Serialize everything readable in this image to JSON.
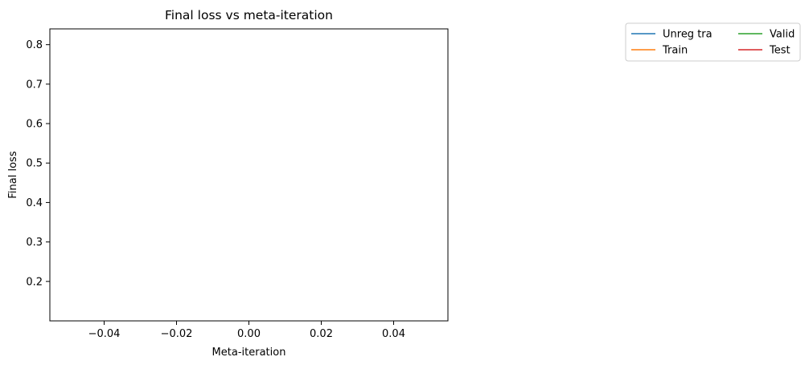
{
  "chart_data": {
    "type": "line",
    "title": "Final loss vs meta-iteration",
    "xlabel": "Meta-iteration",
    "ylabel": "Final loss",
    "xlim": [
      -0.055,
      0.055
    ],
    "ylim": [
      0.1,
      0.84
    ],
    "xticks": [
      -0.04,
      -0.02,
      0.0,
      0.02,
      0.04
    ],
    "xtick_labels": [
      "−0.04",
      "−0.02",
      "0.00",
      "0.02",
      "0.04"
    ],
    "yticks": [
      0.2,
      0.3,
      0.4,
      0.5,
      0.6,
      0.7,
      0.8
    ],
    "ytick_labels": [
      "0.2",
      "0.3",
      "0.4",
      "0.5",
      "0.6",
      "0.7",
      "0.8"
    ],
    "grid": false,
    "legend_placement": "outside-top-right",
    "legend_columns": 2,
    "series": [
      {
        "name": "Unreg tra",
        "color": "#1f77b4",
        "x": [],
        "y": []
      },
      {
        "name": "Train",
        "color": "#ff7f0e",
        "x": [],
        "y": []
      },
      {
        "name": "Valid",
        "color": "#2ca02c",
        "x": [],
        "y": []
      },
      {
        "name": "Test",
        "color": "#d62728",
        "x": [],
        "y": []
      }
    ]
  }
}
